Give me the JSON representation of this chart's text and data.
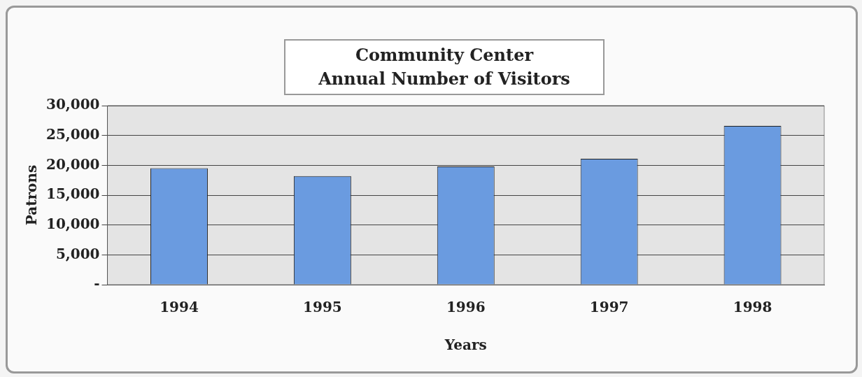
{
  "chart_data": {
    "type": "bar",
    "title": "Community Center\nAnnual Number of Visitors",
    "xlabel": "Years",
    "ylabel": "Patrons",
    "categories": [
      "1994",
      "1995",
      "1996",
      "1997",
      "1998"
    ],
    "values": [
      19500,
      18200,
      19800,
      21100,
      26600
    ],
    "color": "#6a9be0",
    "ylim": [
      0,
      30000
    ],
    "yticks": [
      {
        "value": 0,
        "label": "-"
      },
      {
        "value": 5000,
        "label": "5,000"
      },
      {
        "value": 10000,
        "label": "10,000"
      },
      {
        "value": 15000,
        "label": "15,000"
      },
      {
        "value": 20000,
        "label": "20,000"
      },
      {
        "value": 25000,
        "label": "25,000"
      },
      {
        "value": 30000,
        "label": "30,000"
      }
    ],
    "grid": "y",
    "legend": false
  }
}
